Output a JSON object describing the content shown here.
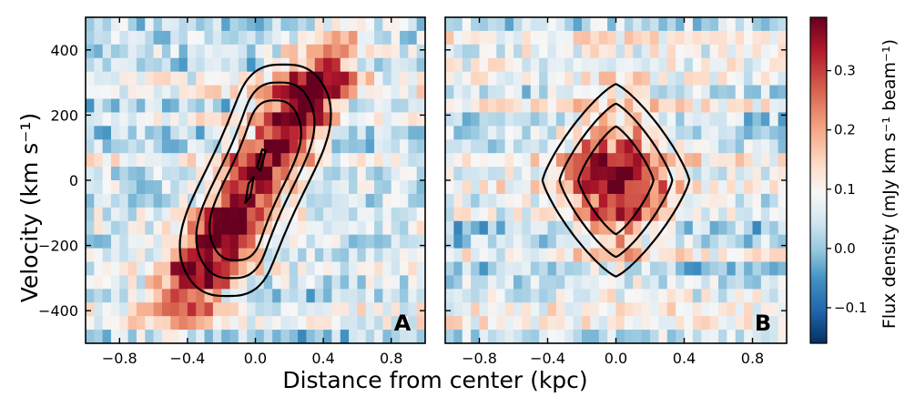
{
  "chart_data": [
    {
      "type": "heatmap",
      "panel_label": "A",
      "xlabel": "Distance from center (kpc)",
      "ylabel": "Velocity (km s⁻¹)",
      "xlim": [
        -1.0,
        1.0
      ],
      "ylim": [
        -500,
        500
      ],
      "xticks": [
        -0.8,
        -0.4,
        0.0,
        0.4,
        0.8
      ],
      "xtick_labels": [
        "−0.8",
        "−0.4",
        "0.0",
        "0.4",
        "0.8"
      ],
      "yticks": [
        -400,
        -200,
        0,
        200,
        400
      ],
      "ytick_labels": [
        "−400",
        "−200",
        "0",
        "200",
        "400"
      ],
      "emission": {
        "center_x": 0.0,
        "center_v": 0,
        "slope_km_s_per_kpc": 900,
        "peak_flux": 0.33,
        "sigma_x_kpc": 0.16,
        "sigma_v_km_s": 110,
        "v_halfwidth_km_s": 280
      },
      "contours": [
        {
          "type": "sheared",
          "center_x": 0.0,
          "center_v": 0,
          "x_halfwidth": 0.32,
          "v_halfwidth": 355,
          "slope": 900
        },
        {
          "type": "sheared",
          "center_x": 0.0,
          "center_v": 0,
          "x_halfwidth": 0.24,
          "v_halfwidth": 300,
          "slope": 900
        },
        {
          "type": "sheared",
          "center_x": 0.0,
          "center_v": 0,
          "x_halfwidth": 0.18,
          "v_halfwidth": 245,
          "slope": 900
        },
        {
          "type": "polyline",
          "points": [
            [
              0.03,
              30
            ],
            [
              0.06,
              90
            ],
            [
              0.04,
              95
            ],
            [
              0.01,
              40
            ]
          ]
        },
        {
          "type": "polyline",
          "points": [
            [
              -0.03,
              -50
            ],
            [
              -0.01,
              10
            ],
            [
              -0.04,
              -10
            ],
            [
              -0.06,
              -70
            ]
          ]
        }
      ]
    },
    {
      "type": "heatmap",
      "panel_label": "B",
      "xlabel": "Distance from center (kpc)",
      "ylabel": "",
      "xlim": [
        -1.0,
        1.0
      ],
      "ylim": [
        -500,
        500
      ],
      "xticks": [
        -0.8,
        -0.4,
        0.0,
        0.4,
        0.8
      ],
      "xtick_labels": [
        "−0.8",
        "−0.4",
        "0.0",
        "0.4",
        "0.8"
      ],
      "yticks": [
        -400,
        -200,
        0,
        200,
        400
      ],
      "ytick_labels": [],
      "emission": {
        "center_x": 0.0,
        "center_v": 0,
        "slope_km_s_per_kpc": 0,
        "peak_flux": 0.3,
        "sigma_x_kpc": 0.2,
        "sigma_v_km_s": 150,
        "v_halfwidth_km_s": 0
      },
      "contours": [
        {
          "type": "diamond",
          "center_x": 0.0,
          "center_v": 0,
          "x_halfwidth": 0.43,
          "v_halfwidth": 295
        },
        {
          "type": "diamond",
          "center_x": 0.0,
          "center_v": 0,
          "x_halfwidth": 0.33,
          "v_halfwidth": 235
        },
        {
          "type": "diamond",
          "center_x": 0.0,
          "center_v": 0,
          "x_halfwidth": 0.22,
          "v_halfwidth": 165
        }
      ]
    }
  ],
  "colorbar": {
    "label": "Flux density (mJy km s⁻¹ beam⁻¹)",
    "colormap": "RdBu_r",
    "vmin": -0.16,
    "vmax": 0.39,
    "ticks": [
      -0.1,
      0.0,
      0.1,
      0.2,
      0.3
    ],
    "tick_labels": [
      "−0.1",
      "0.0",
      "0.1",
      "0.2",
      "0.3"
    ]
  },
  "shared_xlabel": "Distance from center (kpc)",
  "ylabel": "Velocity (km s⁻¹)"
}
